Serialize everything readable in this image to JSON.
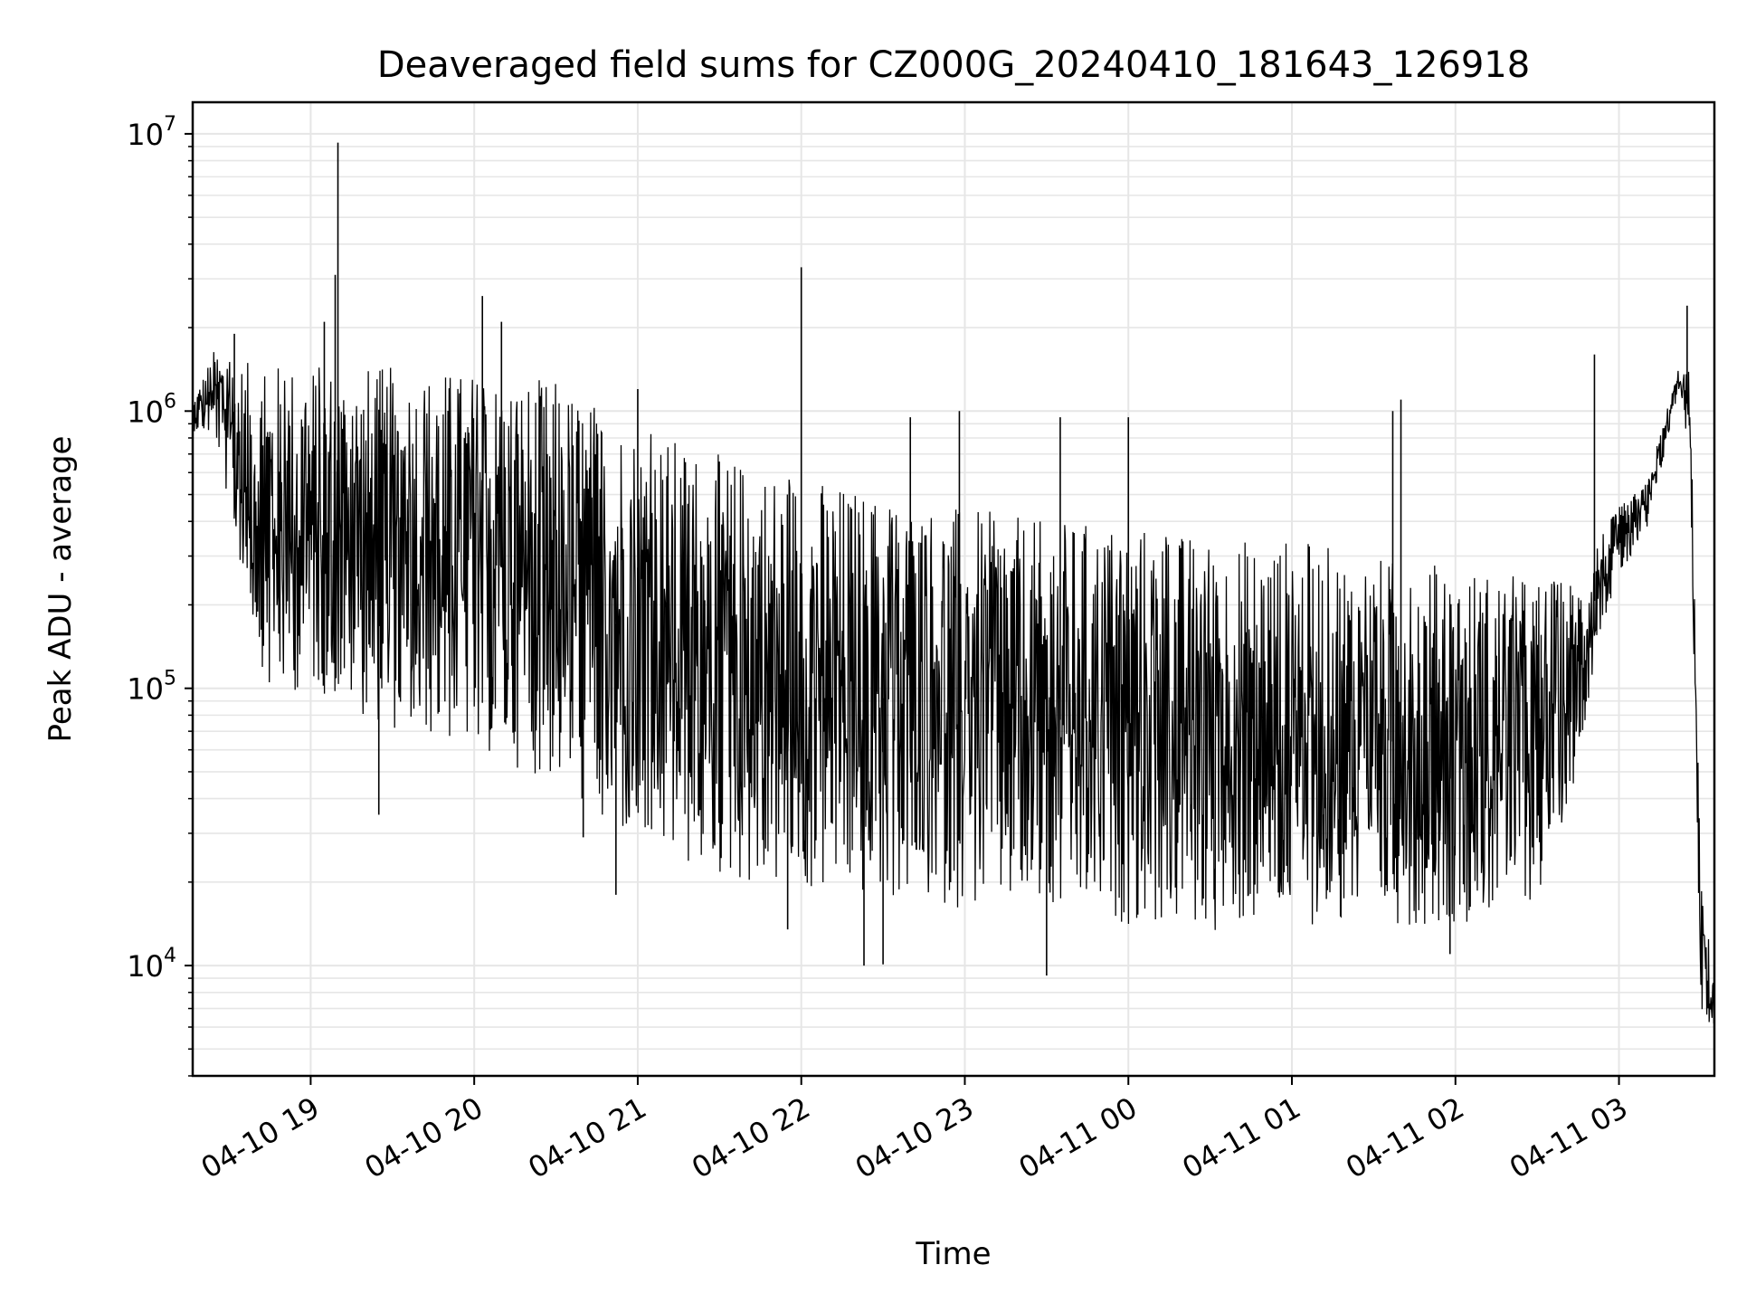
{
  "chart_data": {
    "type": "line",
    "title": "Deaveraged field sums for CZ000G_20240410_181643_126918",
    "xlabel": "Time",
    "ylabel": "Peak ADU - average",
    "y_scale": "log",
    "ylim": [
      4000,
      13000000
    ],
    "xlim": [
      "2024-04-10 18:16:43",
      "2024-04-11 03:35:00"
    ],
    "grid": true,
    "line_color": "#000000",
    "grid_color": "#e6e6e6",
    "x_ticks": [
      {
        "time": "2024-04-10 19:00",
        "label": "04-10 19"
      },
      {
        "time": "2024-04-10 20:00",
        "label": "04-10 20"
      },
      {
        "time": "2024-04-10 21:00",
        "label": "04-10 21"
      },
      {
        "time": "2024-04-10 22:00",
        "label": "04-10 22"
      },
      {
        "time": "2024-04-10 23:00",
        "label": "04-10 23"
      },
      {
        "time": "2024-04-11 00:00",
        "label": "04-11 00"
      },
      {
        "time": "2024-04-11 01:00",
        "label": "04-11 01"
      },
      {
        "time": "2024-04-11 02:00",
        "label": "04-11 02"
      },
      {
        "time": "2024-04-11 03:00",
        "label": "04-11 03"
      }
    ],
    "y_ticks": [
      {
        "value": 10000,
        "base": "10",
        "exp": "4"
      },
      {
        "value": 100000,
        "base": "10",
        "exp": "5"
      },
      {
        "value": 1000000,
        "base": "10",
        "exp": "6"
      },
      {
        "value": 10000000,
        "base": "10",
        "exp": "7"
      }
    ],
    "series": [
      {
        "name": "",
        "envelope": [
          {
            "time": "2024-04-10 18:16:43",
            "low": 850000,
            "high": 1100000
          },
          {
            "time": "2024-04-10 18:25",
            "low": 800000,
            "high": 1700000
          },
          {
            "time": "2024-04-10 18:35",
            "low": 250000,
            "high": 1500000
          },
          {
            "time": "2024-04-10 18:45",
            "low": 90000,
            "high": 1500000
          },
          {
            "time": "2024-04-10 19:00",
            "low": 100000,
            "high": 1500000
          },
          {
            "time": "2024-04-10 19:30",
            "low": 70000,
            "high": 1450000
          },
          {
            "time": "2024-04-10 20:00",
            "low": 60000,
            "high": 1400000
          },
          {
            "time": "2024-04-10 20:30",
            "low": 45000,
            "high": 1300000
          },
          {
            "time": "2024-04-10 21:00",
            "low": 25000,
            "high": 900000
          },
          {
            "time": "2024-04-10 21:30",
            "low": 20000,
            "high": 700000
          },
          {
            "time": "2024-04-10 22:00",
            "low": 18000,
            "high": 600000
          },
          {
            "time": "2024-04-10 22:30",
            "low": 17000,
            "high": 500000
          },
          {
            "time": "2024-04-10 23:00",
            "low": 16000,
            "high": 450000
          },
          {
            "time": "2024-04-10 23:30",
            "low": 15000,
            "high": 400000
          },
          {
            "time": "2024-04-11 00:00",
            "low": 14000,
            "high": 400000
          },
          {
            "time": "2024-04-11 00:30",
            "low": 13000,
            "high": 350000
          },
          {
            "time": "2024-04-11 01:00",
            "low": 14000,
            "high": 350000
          },
          {
            "time": "2024-04-11 01:30",
            "low": 14000,
            "high": 300000
          },
          {
            "time": "2024-04-11 02:00",
            "low": 14000,
            "high": 280000
          },
          {
            "time": "2024-04-11 02:30",
            "low": 17000,
            "high": 250000
          },
          {
            "time": "2024-04-11 02:45",
            "low": 50000,
            "high": 250000
          },
          {
            "time": "2024-04-11 02:52",
            "low": 150000,
            "high": 350000
          },
          {
            "time": "2024-04-11 03:00",
            "low": 250000,
            "high": 450000
          },
          {
            "time": "2024-04-11 03:10",
            "low": 350000,
            "high": 550000
          },
          {
            "time": "2024-04-11 03:22",
            "low": 1200000,
            "high": 1450000
          },
          {
            "time": "2024-04-11 03:26",
            "low": 700000,
            "high": 1400000
          },
          {
            "time": "2024-04-11 03:30",
            "low": 7000,
            "high": 20000
          },
          {
            "time": "2024-04-11 03:35",
            "low": 5500,
            "high": 9000
          }
        ],
        "spikes": [
          {
            "time": "2024-04-10 19:10",
            "value": 9300000
          },
          {
            "time": "2024-04-10 19:09",
            "value": 3100000
          },
          {
            "time": "2024-04-10 20:03",
            "value": 2600000
          },
          {
            "time": "2024-04-10 20:10",
            "value": 2100000
          },
          {
            "time": "2024-04-10 19:05",
            "value": 2100000
          },
          {
            "time": "2024-04-10 22:00",
            "value": 3300000
          },
          {
            "time": "2024-04-11 03:25",
            "value": 2400000
          },
          {
            "time": "2024-04-11 02:51",
            "value": 1600000
          },
          {
            "time": "2024-04-10 18:32",
            "value": 1900000
          },
          {
            "time": "2024-04-10 21:00",
            "value": 1200000
          },
          {
            "time": "2024-04-11 01:40",
            "value": 1100000
          },
          {
            "time": "2024-04-11 01:37",
            "value": 1000000
          },
          {
            "time": "2024-04-10 23:35",
            "value": 950000
          },
          {
            "time": "2024-04-11 00:00",
            "value": 950000
          },
          {
            "time": "2024-04-10 22:58",
            "value": 1000000
          },
          {
            "time": "2024-04-10 22:40",
            "value": 950000
          },
          {
            "time": "2024-04-10 19:25",
            "value": 35000
          },
          {
            "time": "2024-04-10 23:30",
            "value": 9200
          },
          {
            "time": "2024-04-10 22:23",
            "value": 10000
          },
          {
            "time": "2024-04-10 22:30",
            "value": 10100
          },
          {
            "time": "2024-04-11 01:58",
            "value": 11000
          },
          {
            "time": "2024-04-10 20:52",
            "value": 18000
          },
          {
            "time": "2024-04-10 21:55",
            "value": 13500
          },
          {
            "time": "2024-04-10 20:40",
            "value": 29000
          }
        ]
      }
    ]
  }
}
